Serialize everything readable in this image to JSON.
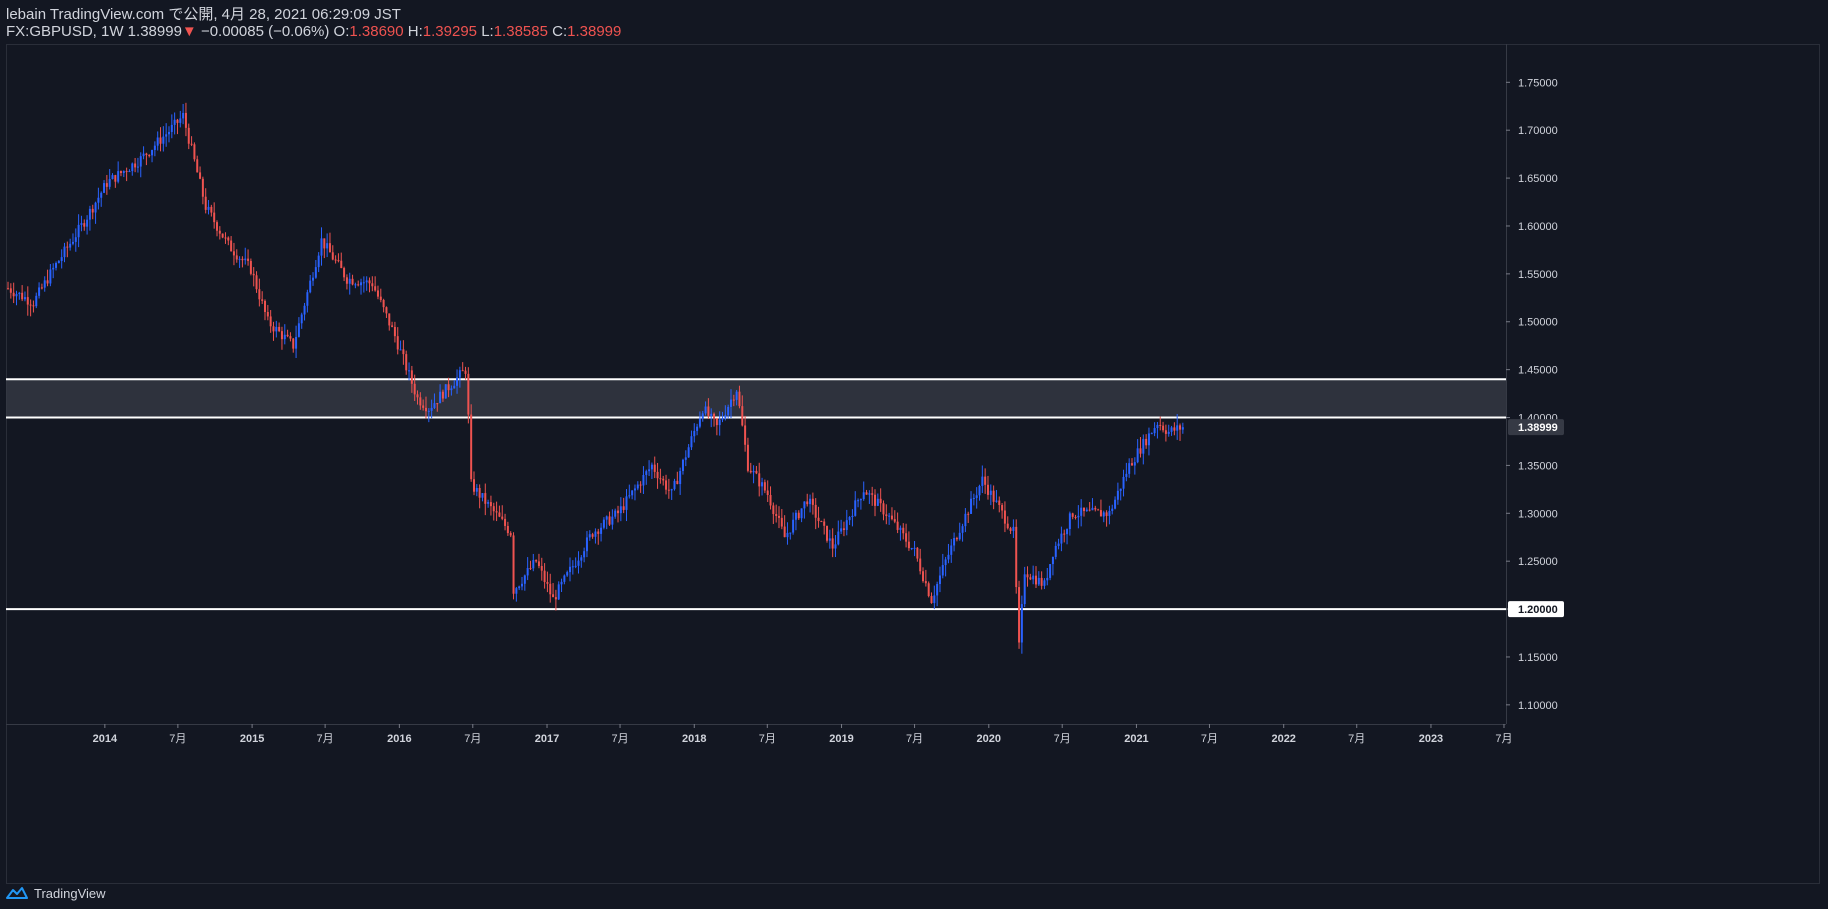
{
  "header": {
    "line1": "lebain TradingView.com で公開, 4月 28, 2021 06:29:09 JST",
    "symbol": "FX:GBPUSD, 1W 1.38999",
    "change_arrow": "▼",
    "change": "−0.00085 (−0.06%)",
    "o_label": "O:",
    "o_value": "1.38690",
    "h_label": "H:",
    "h_value": "1.39295",
    "l_label": "L:",
    "l_value": "1.38585",
    "c_label": "C:",
    "c_value": "1.38999"
  },
  "footer": {
    "brand": "TradingView"
  },
  "colors": {
    "background": "#131722",
    "up": "#2962ff",
    "down": "#ef5350",
    "zone_fill": "#363a45",
    "line": "#ffffff",
    "axis_text": "#d1d4dc"
  },
  "chart_data": {
    "type": "candlestick",
    "symbol": "FX:GBPUSD",
    "interval": "1W",
    "y_ticks": [
      "1.75000",
      "1.70000",
      "1.65000",
      "1.60000",
      "1.55000",
      "1.50000",
      "1.45000",
      "1.40000",
      "1.35000",
      "1.30000",
      "1.25000",
      "1.20000",
      "1.15000",
      "1.10000"
    ],
    "ylim": [
      1.08,
      1.79
    ],
    "x_ticks": [
      {
        "label": "2014",
        "date": "2014-01-01",
        "bold": true
      },
      {
        "label": "7月",
        "date": "2014-07-01",
        "bold": false
      },
      {
        "label": "2015",
        "date": "2015-01-01",
        "bold": true
      },
      {
        "label": "7月",
        "date": "2015-07-01",
        "bold": false
      },
      {
        "label": "2016",
        "date": "2016-01-01",
        "bold": true
      },
      {
        "label": "7月",
        "date": "2016-07-01",
        "bold": false
      },
      {
        "label": "2017",
        "date": "2017-01-01",
        "bold": true
      },
      {
        "label": "7月",
        "date": "2017-07-01",
        "bold": false
      },
      {
        "label": "2018",
        "date": "2018-01-01",
        "bold": true
      },
      {
        "label": "7月",
        "date": "2018-07-01",
        "bold": false
      },
      {
        "label": "2019",
        "date": "2019-01-01",
        "bold": true
      },
      {
        "label": "7月",
        "date": "2019-07-01",
        "bold": false
      },
      {
        "label": "2020",
        "date": "2020-01-01",
        "bold": true
      },
      {
        "label": "7月",
        "date": "2020-07-01",
        "bold": false
      },
      {
        "label": "2021",
        "date": "2021-01-01",
        "bold": true
      },
      {
        "label": "7月",
        "date": "2021-07-01",
        "bold": false
      },
      {
        "label": "2022",
        "date": "2022-01-01",
        "bold": true
      },
      {
        "label": "7月",
        "date": "2022-07-01",
        "bold": false
      },
      {
        "label": "2023",
        "date": "2023-01-01",
        "bold": true
      },
      {
        "label": "7月",
        "date": "2023-07-01",
        "bold": false
      }
    ],
    "xlim": [
      "2013-05-01",
      "2023-07-06"
    ],
    "last_price": {
      "label": "1.38999",
      "value": 1.38999
    },
    "price_line_1_20": {
      "label": "1.20000",
      "value": 1.2
    },
    "zone": {
      "low": 1.4,
      "high": 1.44
    },
    "ohlc_anchors": [
      [
        "2013-05-06",
        1.535
      ],
      [
        "2013-07-08",
        1.52
      ],
      [
        "2013-08-26",
        1.555
      ],
      [
        "2013-11-04",
        1.6
      ],
      [
        "2014-01-06",
        1.645
      ],
      [
        "2014-03-31",
        1.67
      ],
      [
        "2014-06-23",
        1.705
      ],
      [
        "2014-07-14",
        1.715
      ],
      [
        "2014-09-08",
        1.62
      ],
      [
        "2014-11-03",
        1.58
      ],
      [
        "2014-12-29",
        1.555
      ],
      [
        "2015-02-09",
        1.5
      ],
      [
        "2015-04-13",
        1.475
      ],
      [
        "2015-06-22",
        1.585
      ],
      [
        "2015-08-24",
        1.545
      ],
      [
        "2015-10-26",
        1.54
      ],
      [
        "2015-12-21",
        1.485
      ],
      [
        "2016-02-15",
        1.42
      ],
      [
        "2016-03-14",
        1.41
      ],
      [
        "2016-05-09",
        1.435
      ],
      [
        "2016-06-13",
        1.45
      ],
      [
        "2016-06-20",
        1.4
      ],
      [
        "2016-06-27",
        1.33
      ],
      [
        "2016-08-15",
        1.305
      ],
      [
        "2016-10-03",
        1.28
      ],
      [
        "2016-10-10",
        1.22
      ],
      [
        "2016-12-05",
        1.25
      ],
      [
        "2017-01-16",
        1.21
      ],
      [
        "2017-04-24",
        1.28
      ],
      [
        "2017-06-26",
        1.3
      ],
      [
        "2017-09-18",
        1.35
      ],
      [
        "2017-11-06",
        1.32
      ],
      [
        "2018-01-22",
        1.41
      ],
      [
        "2018-02-26",
        1.39
      ],
      [
        "2018-04-16",
        1.43
      ],
      [
        "2018-05-14",
        1.35
      ],
      [
        "2018-07-02",
        1.32
      ],
      [
        "2018-08-13",
        1.275
      ],
      [
        "2018-10-08",
        1.315
      ],
      [
        "2018-12-10",
        1.265
      ],
      [
        "2019-02-25",
        1.325
      ],
      [
        "2019-04-22",
        1.3
      ],
      [
        "2019-07-01",
        1.26
      ],
      [
        "2019-08-12",
        1.21
      ],
      [
        "2019-09-16",
        1.25
      ],
      [
        "2019-10-21",
        1.285
      ],
      [
        "2019-12-16",
        1.335
      ],
      [
        "2020-02-03",
        1.3
      ],
      [
        "2020-03-02",
        1.28
      ],
      [
        "2020-03-16",
        1.16
      ],
      [
        "2020-03-30",
        1.24
      ],
      [
        "2020-05-18",
        1.225
      ],
      [
        "2020-06-08",
        1.26
      ],
      [
        "2020-07-27",
        1.3
      ],
      [
        "2020-09-07",
        1.3
      ],
      [
        "2020-10-26",
        1.3
      ],
      [
        "2020-12-14",
        1.35
      ],
      [
        "2021-02-22",
        1.395
      ],
      [
        "2021-03-22",
        1.385
      ],
      [
        "2021-04-26",
        1.39
      ]
    ]
  }
}
